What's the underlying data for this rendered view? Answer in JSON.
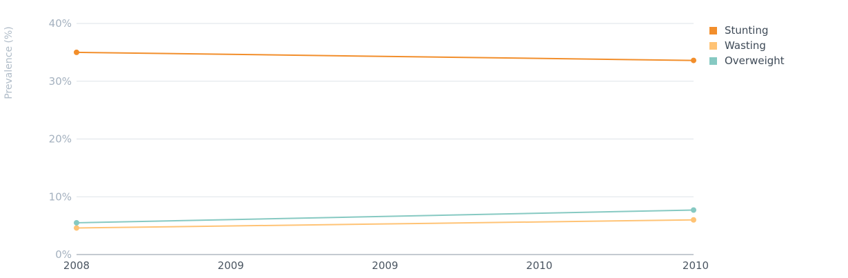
{
  "chart_data": {
    "type": "line",
    "title": "",
    "xlabel": "",
    "ylabel": "Prevalence (%)",
    "categories": [
      "2008",
      "2009",
      "2009",
      "2010",
      "2010"
    ],
    "y_ticks": [
      "0%",
      "10%",
      "20%",
      "30%",
      "40%"
    ],
    "ylim": [
      0,
      40
    ],
    "grid": true,
    "legend_position": "top-right",
    "series": [
      {
        "name": "Stunting",
        "color": "#f28e2b",
        "points": [
          {
            "x": "2008",
            "y": 35.0
          },
          {
            "x": "2010",
            "y": 33.6
          }
        ]
      },
      {
        "name": "Wasting",
        "color": "#ffc375",
        "points": [
          {
            "x": "2008",
            "y": 4.6
          },
          {
            "x": "2010",
            "y": 6.0
          }
        ]
      },
      {
        "name": "Overweight",
        "color": "#86c9c2",
        "points": [
          {
            "x": "2008",
            "y": 5.5
          },
          {
            "x": "2010",
            "y": 7.7
          }
        ]
      }
    ]
  }
}
